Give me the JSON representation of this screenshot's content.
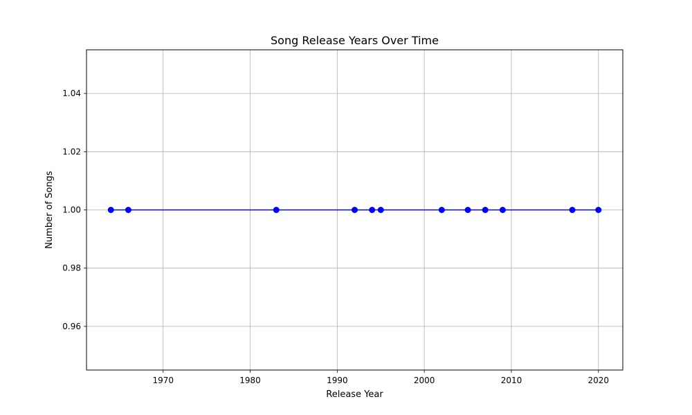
{
  "chart_data": {
    "type": "line",
    "title": "Song Release Years Over Time",
    "xlabel": "Release Year",
    "ylabel": "Number of Songs",
    "xlim": [
      1961.2,
      2022.8
    ],
    "ylim": [
      0.945,
      1.055
    ],
    "x_ticks": [
      1970,
      1980,
      1990,
      2000,
      2010,
      2020
    ],
    "y_ticks": [
      0.96,
      0.98,
      1.0,
      1.02,
      1.04
    ],
    "x_tick_labels": [
      "1970",
      "1980",
      "1990",
      "2000",
      "2010",
      "2020"
    ],
    "y_tick_labels": [
      "0.96",
      "0.98",
      "1.00",
      "1.02",
      "1.04"
    ],
    "grid": true,
    "series": [
      {
        "color": "#0000ff",
        "marker": "circle",
        "x": [
          1964,
          1966,
          1983,
          1992,
          1994,
          1995,
          2002,
          2005,
          2007,
          2009,
          2017,
          2020
        ],
        "y": [
          1,
          1,
          1,
          1,
          1,
          1,
          1,
          1,
          1,
          1,
          1,
          1
        ]
      }
    ]
  }
}
